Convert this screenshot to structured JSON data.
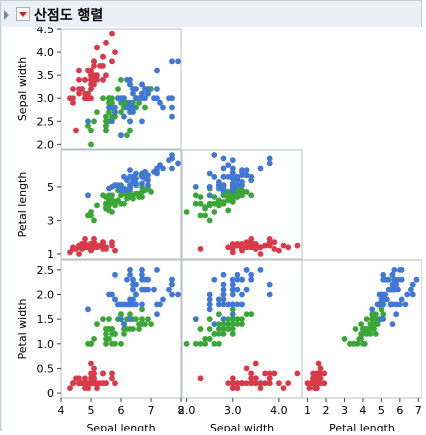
{
  "window": {
    "title": "산점도 행렬"
  },
  "colors": {
    "setosa": "#d93a49",
    "versicolor": "#3aa637",
    "virginica": "#4178d6"
  },
  "chart_data": {
    "type": "scatter",
    "layout": "lower-triangle",
    "variables": [
      "Sepal length",
      "Sepal width",
      "Petal length",
      "Petal width"
    ],
    "ticks": {
      "Sepal length": {
        "range": [
          4,
          8
        ],
        "values": [
          4,
          5,
          6,
          7,
          8
        ],
        "labels": [
          "4",
          "5",
          "6",
          "7",
          "8"
        ]
      },
      "Sepal width": {
        "range": [
          1.9,
          4.5
        ],
        "values": [
          2.0,
          2.5,
          3.0,
          3.5,
          4.0,
          4.5
        ],
        "labels": [
          "2.0",
          "2.5",
          "3.0",
          "3.5",
          "4.0",
          "4.5"
        ],
        "x_values": [
          2.0,
          3.0,
          4.0
        ],
        "x_labels": [
          "2.0",
          "3.0",
          "4.0"
        ]
      },
      "Petal length": {
        "range": [
          0.7,
          7.2
        ],
        "values": [
          1,
          3,
          5
        ],
        "labels": [
          "1",
          "3",
          "5"
        ],
        "x_values": [
          1,
          2,
          3,
          4,
          5,
          6,
          7
        ],
        "x_labels": [
          "1",
          "2",
          "3",
          "4",
          "5",
          "6",
          "7"
        ]
      },
      "Petal width": {
        "range": [
          -0.1,
          2.7
        ],
        "values": [
          0,
          0.5,
          1.0,
          1.5,
          2.0,
          2.5
        ],
        "labels": [
          "0",
          "0.5",
          "1.0",
          "1.5",
          "2.0",
          "2.5"
        ]
      }
    },
    "series": [
      {
        "color": "#d93a49",
        "points": [
          [
            5.1,
            3.5,
            1.4,
            0.2
          ],
          [
            4.9,
            3.0,
            1.4,
            0.2
          ],
          [
            4.7,
            3.2,
            1.3,
            0.2
          ],
          [
            4.6,
            3.1,
            1.5,
            0.2
          ],
          [
            5.0,
            3.6,
            1.4,
            0.2
          ],
          [
            5.4,
            3.9,
            1.7,
            0.4
          ],
          [
            4.6,
            3.4,
            1.4,
            0.3
          ],
          [
            5.0,
            3.4,
            1.5,
            0.2
          ],
          [
            4.4,
            2.9,
            1.4,
            0.2
          ],
          [
            4.9,
            3.1,
            1.5,
            0.1
          ],
          [
            5.4,
            3.7,
            1.5,
            0.2
          ],
          [
            4.8,
            3.4,
            1.6,
            0.2
          ],
          [
            4.8,
            3.0,
            1.4,
            0.1
          ],
          [
            4.3,
            3.0,
            1.1,
            0.1
          ],
          [
            5.8,
            4.0,
            1.2,
            0.2
          ],
          [
            5.7,
            4.4,
            1.5,
            0.4
          ],
          [
            5.4,
            3.9,
            1.3,
            0.4
          ],
          [
            5.1,
            3.5,
            1.4,
            0.3
          ],
          [
            5.7,
            3.8,
            1.7,
            0.3
          ],
          [
            5.1,
            3.8,
            1.5,
            0.3
          ],
          [
            5.4,
            3.4,
            1.7,
            0.2
          ],
          [
            5.1,
            3.7,
            1.5,
            0.4
          ],
          [
            4.6,
            3.6,
            1.0,
            0.2
          ],
          [
            5.1,
            3.3,
            1.7,
            0.5
          ],
          [
            4.8,
            3.4,
            1.9,
            0.2
          ],
          [
            5.0,
            3.0,
            1.6,
            0.2
          ],
          [
            5.0,
            3.4,
            1.6,
            0.4
          ],
          [
            5.2,
            3.5,
            1.5,
            0.2
          ],
          [
            5.2,
            3.4,
            1.4,
            0.2
          ],
          [
            4.7,
            3.2,
            1.6,
            0.2
          ],
          [
            4.8,
            3.1,
            1.6,
            0.2
          ],
          [
            5.4,
            3.4,
            1.5,
            0.4
          ],
          [
            5.2,
            4.1,
            1.5,
            0.1
          ],
          [
            5.5,
            4.2,
            1.4,
            0.2
          ],
          [
            4.9,
            3.1,
            1.5,
            0.2
          ],
          [
            5.0,
            3.2,
            1.2,
            0.2
          ],
          [
            5.5,
            3.5,
            1.3,
            0.2
          ],
          [
            4.9,
            3.6,
            1.4,
            0.1
          ],
          [
            4.4,
            3.0,
            1.3,
            0.2
          ],
          [
            5.1,
            3.4,
            1.5,
            0.2
          ],
          [
            5.0,
            3.5,
            1.3,
            0.3
          ],
          [
            4.5,
            2.3,
            1.3,
            0.3
          ],
          [
            4.4,
            3.2,
            1.3,
            0.2
          ],
          [
            5.0,
            3.5,
            1.6,
            0.6
          ],
          [
            5.1,
            3.8,
            1.9,
            0.4
          ],
          [
            4.8,
            3.0,
            1.4,
            0.3
          ],
          [
            5.1,
            3.8,
            1.6,
            0.2
          ],
          [
            4.6,
            3.2,
            1.4,
            0.2
          ],
          [
            5.3,
            3.7,
            1.5,
            0.2
          ],
          [
            5.0,
            3.3,
            1.4,
            0.2
          ]
        ]
      },
      {
        "color": "#3aa637",
        "points": [
          [
            7.0,
            3.2,
            4.7,
            1.4
          ],
          [
            6.4,
            3.2,
            4.5,
            1.5
          ],
          [
            6.9,
            3.1,
            4.9,
            1.5
          ],
          [
            5.5,
            2.3,
            4.0,
            1.3
          ],
          [
            6.5,
            2.8,
            4.6,
            1.5
          ],
          [
            5.7,
            2.8,
            4.5,
            1.3
          ],
          [
            6.3,
            3.3,
            4.7,
            1.6
          ],
          [
            4.9,
            2.4,
            3.3,
            1.0
          ],
          [
            6.6,
            2.9,
            4.6,
            1.3
          ],
          [
            5.2,
            2.7,
            3.9,
            1.4
          ],
          [
            5.0,
            2.0,
            3.5,
            1.0
          ],
          [
            5.9,
            3.0,
            4.2,
            1.5
          ],
          [
            6.0,
            2.2,
            4.0,
            1.0
          ],
          [
            6.1,
            2.9,
            4.7,
            1.4
          ],
          [
            5.6,
            2.9,
            3.6,
            1.3
          ],
          [
            6.7,
            3.1,
            4.4,
            1.4
          ],
          [
            5.6,
            3.0,
            4.5,
            1.5
          ],
          [
            5.8,
            2.7,
            4.1,
            1.0
          ],
          [
            6.2,
            2.2,
            4.5,
            1.5
          ],
          [
            5.6,
            2.5,
            3.9,
            1.1
          ],
          [
            5.9,
            3.2,
            4.8,
            1.8
          ],
          [
            6.1,
            2.8,
            4.0,
            1.3
          ],
          [
            6.3,
            2.5,
            4.9,
            1.5
          ],
          [
            6.1,
            2.8,
            4.7,
            1.2
          ],
          [
            6.4,
            2.9,
            4.3,
            1.3
          ],
          [
            6.6,
            3.0,
            4.4,
            1.4
          ],
          [
            6.8,
            2.8,
            4.8,
            1.4
          ],
          [
            6.7,
            3.0,
            5.0,
            1.7
          ],
          [
            6.0,
            2.9,
            4.5,
            1.5
          ],
          [
            5.7,
            2.6,
            3.5,
            1.0
          ],
          [
            5.5,
            2.4,
            3.8,
            1.1
          ],
          [
            5.5,
            2.4,
            3.7,
            1.0
          ],
          [
            5.8,
            2.7,
            3.9,
            1.2
          ],
          [
            6.0,
            2.7,
            5.1,
            1.6
          ],
          [
            5.4,
            3.0,
            4.5,
            1.5
          ],
          [
            6.0,
            3.4,
            4.5,
            1.6
          ],
          [
            6.7,
            3.1,
            4.7,
            1.5
          ],
          [
            6.3,
            2.3,
            4.4,
            1.3
          ],
          [
            5.6,
            3.0,
            4.1,
            1.3
          ],
          [
            5.5,
            2.5,
            4.0,
            1.3
          ],
          [
            5.5,
            2.6,
            4.4,
            1.2
          ],
          [
            6.1,
            3.0,
            4.6,
            1.4
          ],
          [
            5.8,
            2.6,
            4.0,
            1.2
          ],
          [
            5.0,
            2.3,
            3.3,
            1.0
          ],
          [
            5.6,
            2.7,
            4.2,
            1.3
          ],
          [
            5.7,
            3.0,
            4.2,
            1.2
          ],
          [
            5.7,
            2.9,
            4.2,
            1.3
          ],
          [
            6.2,
            2.9,
            4.3,
            1.3
          ],
          [
            5.1,
            2.5,
            3.0,
            1.1
          ],
          [
            5.7,
            2.8,
            4.1,
            1.3
          ]
        ]
      },
      {
        "color": "#4178d6",
        "points": [
          [
            6.3,
            3.3,
            6.0,
            2.5
          ],
          [
            5.8,
            2.7,
            5.1,
            1.9
          ],
          [
            7.1,
            3.0,
            5.9,
            2.1
          ],
          [
            6.3,
            2.9,
            5.6,
            1.8
          ],
          [
            6.5,
            3.0,
            5.8,
            2.2
          ],
          [
            7.6,
            3.0,
            6.6,
            2.1
          ],
          [
            4.9,
            2.5,
            4.5,
            1.7
          ],
          [
            7.3,
            2.9,
            6.3,
            1.8
          ],
          [
            6.7,
            2.5,
            5.8,
            1.8
          ],
          [
            7.2,
            3.6,
            6.1,
            2.5
          ],
          [
            6.5,
            3.2,
            5.1,
            2.0
          ],
          [
            6.4,
            2.7,
            5.3,
            1.9
          ],
          [
            6.8,
            3.0,
            5.5,
            2.1
          ],
          [
            5.7,
            2.5,
            5.0,
            2.0
          ],
          [
            5.8,
            2.8,
            5.1,
            2.4
          ],
          [
            6.4,
            3.2,
            5.3,
            2.3
          ],
          [
            6.5,
            3.0,
            5.5,
            1.8
          ],
          [
            7.7,
            3.8,
            6.7,
            2.2
          ],
          [
            7.7,
            2.6,
            6.9,
            2.3
          ],
          [
            6.0,
            2.2,
            5.0,
            1.5
          ],
          [
            6.9,
            3.2,
            5.7,
            2.3
          ],
          [
            5.6,
            2.8,
            4.9,
            2.0
          ],
          [
            7.7,
            2.8,
            6.7,
            2.0
          ],
          [
            6.3,
            2.7,
            4.9,
            1.8
          ],
          [
            6.7,
            3.3,
            5.7,
            2.1
          ],
          [
            7.2,
            3.2,
            6.0,
            1.8
          ],
          [
            6.2,
            2.8,
            4.8,
            1.8
          ],
          [
            6.1,
            3.0,
            4.9,
            1.8
          ],
          [
            6.4,
            2.8,
            5.6,
            2.1
          ],
          [
            7.2,
            3.0,
            5.8,
            1.6
          ],
          [
            7.4,
            2.8,
            6.1,
            1.9
          ],
          [
            7.9,
            3.8,
            6.4,
            2.0
          ],
          [
            6.4,
            2.8,
            5.6,
            2.2
          ],
          [
            6.3,
            2.8,
            5.1,
            1.5
          ],
          [
            6.1,
            2.6,
            5.6,
            1.4
          ],
          [
            7.7,
            3.0,
            6.1,
            2.3
          ],
          [
            6.3,
            3.4,
            5.6,
            2.4
          ],
          [
            6.4,
            3.1,
            5.5,
            1.8
          ],
          [
            6.0,
            3.0,
            4.8,
            1.8
          ],
          [
            6.9,
            3.1,
            5.4,
            2.1
          ],
          [
            6.7,
            3.1,
            5.6,
            2.4
          ],
          [
            6.9,
            3.1,
            5.1,
            2.3
          ],
          [
            5.8,
            2.7,
            5.1,
            1.9
          ],
          [
            6.8,
            3.2,
            5.9,
            2.3
          ],
          [
            6.7,
            3.3,
            5.7,
            2.5
          ],
          [
            6.7,
            3.0,
            5.2,
            2.3
          ],
          [
            6.3,
            2.5,
            5.0,
            1.9
          ],
          [
            6.5,
            3.0,
            5.2,
            2.0
          ],
          [
            6.2,
            3.4,
            5.4,
            2.3
          ],
          [
            5.9,
            3.0,
            5.1,
            1.8
          ]
        ]
      }
    ]
  }
}
